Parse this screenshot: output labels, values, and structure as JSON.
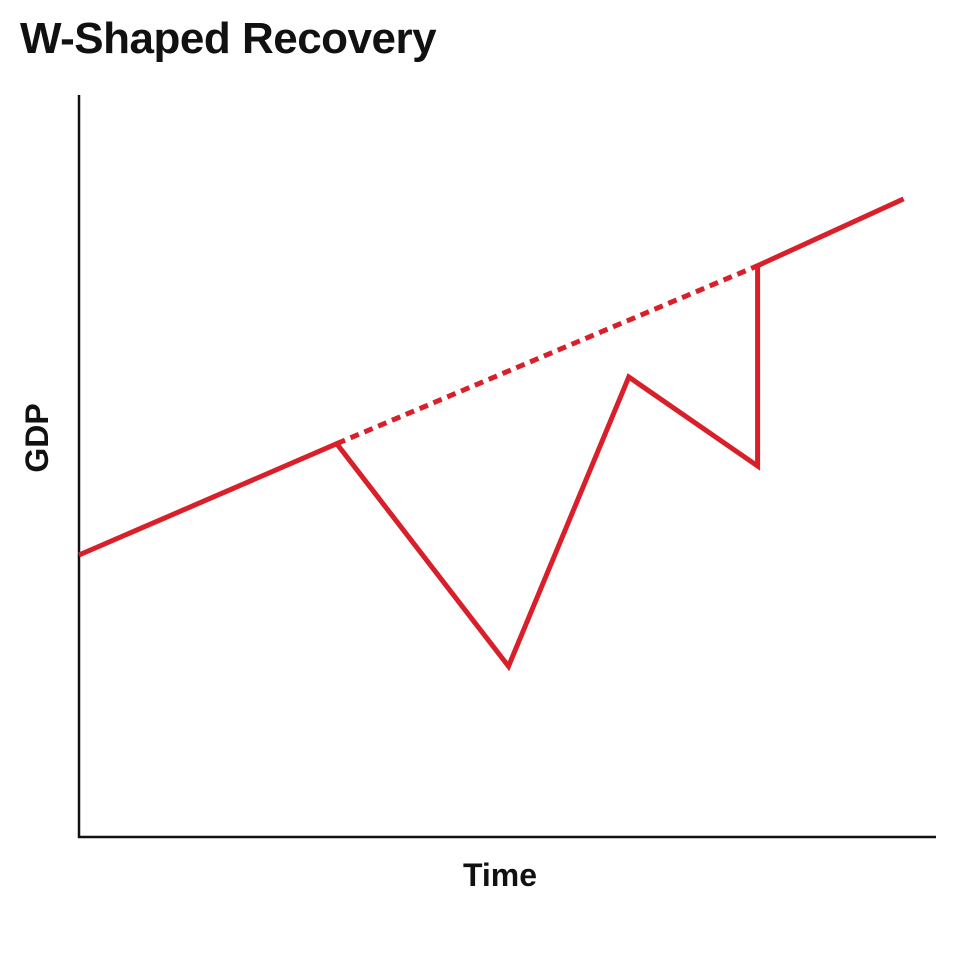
{
  "chart_data": {
    "type": "line",
    "title": "W-Shaped Recovery",
    "xlabel": "Time",
    "ylabel": "GDP",
    "xlim": [
      0,
      100
    ],
    "ylim": [
      0,
      100
    ],
    "grid": false,
    "legend": "none",
    "x_ticks": [],
    "y_ticks": [],
    "series": [
      {
        "style": "solid",
        "color": "#d81f2a",
        "points": [
          [
            0,
            38
          ],
          [
            30,
            53
          ],
          [
            50,
            23
          ],
          [
            64,
            62
          ],
          [
            79,
            50
          ],
          [
            79,
            77
          ],
          [
            96,
            86
          ]
        ]
      },
      {
        "style": "dotted",
        "color": "#d81f2a",
        "points": [
          [
            30,
            53
          ],
          [
            79,
            77
          ]
        ]
      }
    ]
  }
}
